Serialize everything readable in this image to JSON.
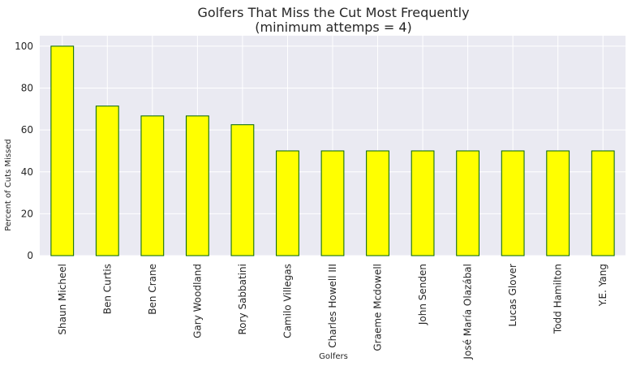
{
  "chart_data": {
    "type": "bar",
    "title": [
      "Golfers That Miss the Cut Most Frequently",
      "(minimum attemps = 4)"
    ],
    "xlabel": "Golfers",
    "ylabel": "Percent of Cuts Missed",
    "categories": [
      "Shaun Micheel",
      "Ben Curtis",
      "Ben Crane",
      "Gary Woodland",
      "Rory Sabbatini",
      "Camilo Villegas",
      "Charles Howell III",
      "Graeme Mcdowell",
      "John Senden",
      "José María Olazábal",
      "Lucas Glover",
      "Todd Hamilton",
      "Y.E. Yang"
    ],
    "values": [
      100,
      71.4,
      66.7,
      66.7,
      62.5,
      50,
      50,
      50,
      50,
      50,
      50,
      50,
      50
    ],
    "ylim": [
      0,
      105
    ],
    "yticks": [
      0,
      20,
      40,
      60,
      80,
      100
    ],
    "grid": true,
    "colors": {
      "bar_fill": "#ffff00",
      "bar_edge": "#006400",
      "plot_bg": "#eaeaf2",
      "grid": "#ffffff"
    }
  }
}
